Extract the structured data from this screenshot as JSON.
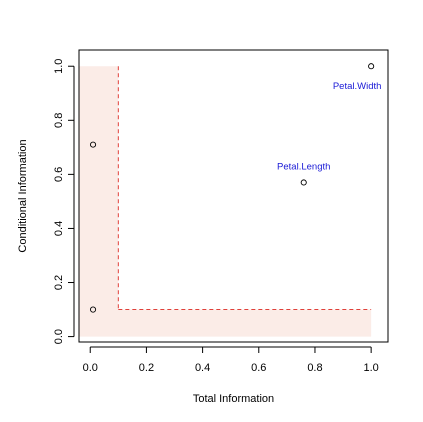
{
  "chart_data": {
    "type": "scatter",
    "title": "",
    "xlabel": "Total Information",
    "ylabel": "Conditional Information",
    "xlim": [
      -0.04,
      1.06
    ],
    "ylim": [
      -0.02,
      1.06
    ],
    "x_ticks": [
      0.0,
      0.2,
      0.4,
      0.6,
      0.8,
      1.0
    ],
    "x_tick_labels": [
      "0.0",
      "0.2",
      "0.4",
      "0.6",
      "0.8",
      "1.0"
    ],
    "y_ticks": [
      0.0,
      0.2,
      0.4,
      0.6,
      0.8,
      1.0
    ],
    "y_tick_labels": [
      "0.0",
      "0.2",
      "0.4",
      "0.6",
      "0.8",
      "1.0"
    ],
    "grid": false,
    "legend": "none",
    "points": [
      {
        "x": 0.01,
        "y": 0.1,
        "label": ""
      },
      {
        "x": 0.01,
        "y": 0.71,
        "label": ""
      },
      {
        "x": 0.76,
        "y": 0.57,
        "label": "Petal.Length"
      },
      {
        "x": 1.0,
        "y": 1.0,
        "label": "Petal.Width"
      }
    ],
    "threshold_region": {
      "x_cut": 0.1,
      "y_cut": 0.1,
      "x_max": 1.0,
      "y_max": 1.0
    },
    "colors": {
      "region_fill": "#fbece7",
      "threshold_line": "#e0403a",
      "label_text": "#1a1ad6",
      "points": "#000000"
    }
  }
}
